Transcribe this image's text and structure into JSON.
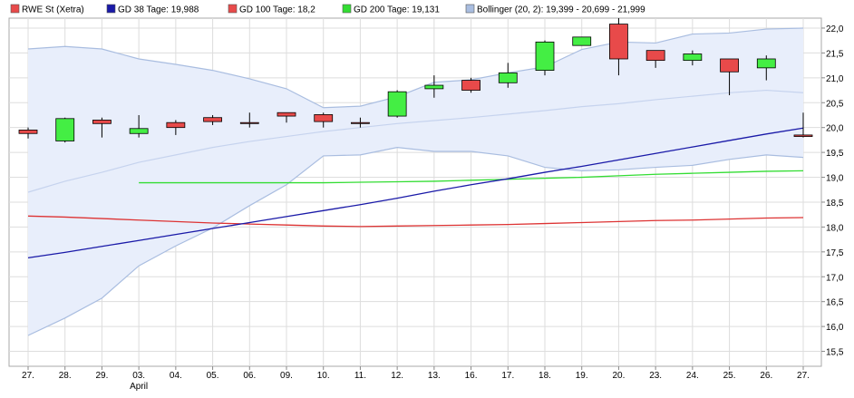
{
  "chart_data": {
    "type": "candlestick",
    "y_axis_position": "right",
    "ylim": [
      15.2,
      22.2
    ],
    "y_ticks": [
      "15,5",
      "16,0",
      "16,5",
      "17,0",
      "17,5",
      "18,0",
      "18,5",
      "19,0",
      "19,5",
      "20,0",
      "20,5",
      "21,0",
      "21,5",
      "22,0"
    ],
    "y_tick_values": [
      15.5,
      16.0,
      16.5,
      17.0,
      17.5,
      18.0,
      18.5,
      19.0,
      19.5,
      20.0,
      20.5,
      21.0,
      21.5,
      22.0
    ],
    "categories": [
      "27.",
      "28.",
      "29.",
      "03.",
      "04.",
      "05.",
      "06.",
      "09.",
      "10.",
      "11.",
      "12.",
      "13.",
      "16.",
      "17.",
      "18.",
      "19.",
      "20.",
      "23.",
      "24.",
      "25.",
      "26.",
      "27."
    ],
    "month_labels": [
      {
        "index": 3,
        "label": "April"
      }
    ],
    "legend": [
      {
        "key": "price",
        "label": "RWE St (Xetra)",
        "color": "#e84a4a"
      },
      {
        "key": "sma38",
        "label": "GD 38 Tage: 19,988",
        "color": "#1a1aa8"
      },
      {
        "key": "sma100",
        "label": "GD 100 Tage: 18,2",
        "color": "#e84a4a"
      },
      {
        "key": "sma200",
        "label": "GD 200 Tage: 19,131",
        "color": "#33dd33"
      },
      {
        "key": "bollinger",
        "label": "Bollinger (20, 2): 19,399 - 20,699 - 21,999",
        "color": "#a9bde0"
      }
    ],
    "candles": [
      {
        "open": 19.95,
        "high": 20.0,
        "low": 19.78,
        "close": 19.88
      },
      {
        "open": 19.73,
        "high": 20.2,
        "low": 19.7,
        "close": 20.18
      },
      {
        "open": 20.15,
        "high": 20.2,
        "low": 19.8,
        "close": 20.08
      },
      {
        "open": 19.88,
        "high": 20.25,
        "low": 19.8,
        "close": 19.98
      },
      {
        "open": 20.1,
        "high": 20.15,
        "low": 19.85,
        "close": 20.0
      },
      {
        "open": 20.2,
        "high": 20.25,
        "low": 20.05,
        "close": 20.12
      },
      {
        "open": 20.1,
        "high": 20.3,
        "low": 20.0,
        "close": 20.08
      },
      {
        "open": 20.3,
        "high": 20.3,
        "low": 20.1,
        "close": 20.23
      },
      {
        "open": 20.26,
        "high": 20.3,
        "low": 20.0,
        "close": 20.12
      },
      {
        "open": 20.1,
        "high": 20.2,
        "low": 20.0,
        "close": 20.08
      },
      {
        "open": 20.23,
        "high": 20.75,
        "low": 20.2,
        "close": 20.72
      },
      {
        "open": 20.78,
        "high": 21.05,
        "low": 20.6,
        "close": 20.85
      },
      {
        "open": 20.95,
        "high": 21.0,
        "low": 20.7,
        "close": 20.75
      },
      {
        "open": 20.9,
        "high": 21.3,
        "low": 20.8,
        "close": 21.1
      },
      {
        "open": 21.15,
        "high": 21.75,
        "low": 21.05,
        "close": 21.72
      },
      {
        "open": 21.65,
        "high": 21.82,
        "low": 21.65,
        "close": 21.82
      },
      {
        "open": 22.08,
        "high": 22.2,
        "low": 21.05,
        "close": 21.38
      },
      {
        "open": 21.55,
        "high": 21.55,
        "low": 21.2,
        "close": 21.35
      },
      {
        "open": 21.35,
        "high": 21.55,
        "low": 21.25,
        "close": 21.48
      },
      {
        "open": 21.38,
        "high": 21.38,
        "low": 20.65,
        "close": 21.12
      },
      {
        "open": 21.2,
        "high": 21.45,
        "low": 20.95,
        "close": 21.38
      },
      {
        "open": 19.85,
        "high": 20.3,
        "low": 19.8,
        "close": 19.82
      }
    ],
    "sma38": [
      17.38,
      17.49,
      17.61,
      17.73,
      17.85,
      17.97,
      18.09,
      18.21,
      18.33,
      18.45,
      18.58,
      18.72,
      18.85,
      18.97,
      19.1,
      19.22,
      19.35,
      19.48,
      19.61,
      19.74,
      19.87,
      19.99
    ],
    "sma100": [
      18.22,
      18.2,
      18.17,
      18.14,
      18.11,
      18.08,
      18.06,
      18.04,
      18.02,
      18.01,
      18.02,
      18.03,
      18.04,
      18.05,
      18.07,
      18.09,
      18.11,
      18.13,
      18.14,
      18.16,
      18.18,
      18.19
    ],
    "sma200": [
      null,
      null,
      null,
      18.89,
      18.89,
      18.89,
      18.89,
      18.89,
      18.89,
      18.9,
      18.91,
      18.92,
      18.94,
      18.96,
      18.98,
      19.0,
      19.03,
      19.06,
      19.08,
      19.1,
      19.12,
      19.13
    ],
    "bollinger_upper": [
      21.58,
      21.63,
      21.58,
      21.38,
      21.27,
      21.15,
      20.98,
      20.78,
      20.4,
      20.43,
      20.62,
      20.91,
      20.96,
      21.1,
      21.22,
      21.57,
      21.72,
      21.7,
      21.88,
      21.9,
      21.98,
      22.0
    ],
    "bollinger_middle": [
      18.7,
      18.92,
      19.1,
      19.3,
      19.45,
      19.6,
      19.72,
      19.82,
      19.92,
      20.0,
      20.08,
      20.14,
      20.2,
      20.27,
      20.34,
      20.42,
      20.48,
      20.56,
      20.63,
      20.7,
      20.75,
      20.7
    ],
    "bollinger_lower": [
      15.82,
      16.17,
      16.57,
      17.22,
      17.62,
      17.98,
      18.43,
      18.85,
      19.43,
      19.45,
      19.6,
      19.52,
      19.52,
      19.43,
      19.2,
      19.13,
      19.15,
      19.2,
      19.24,
      19.36,
      19.45,
      19.4
    ],
    "colors": {
      "up_fill": "#44ee44",
      "down_fill": "#e84a4a",
      "candle_border": "#000000",
      "grid": "#dddddd",
      "band_fill": "#e8eefb",
      "band_line": "#a9bde0"
    }
  }
}
